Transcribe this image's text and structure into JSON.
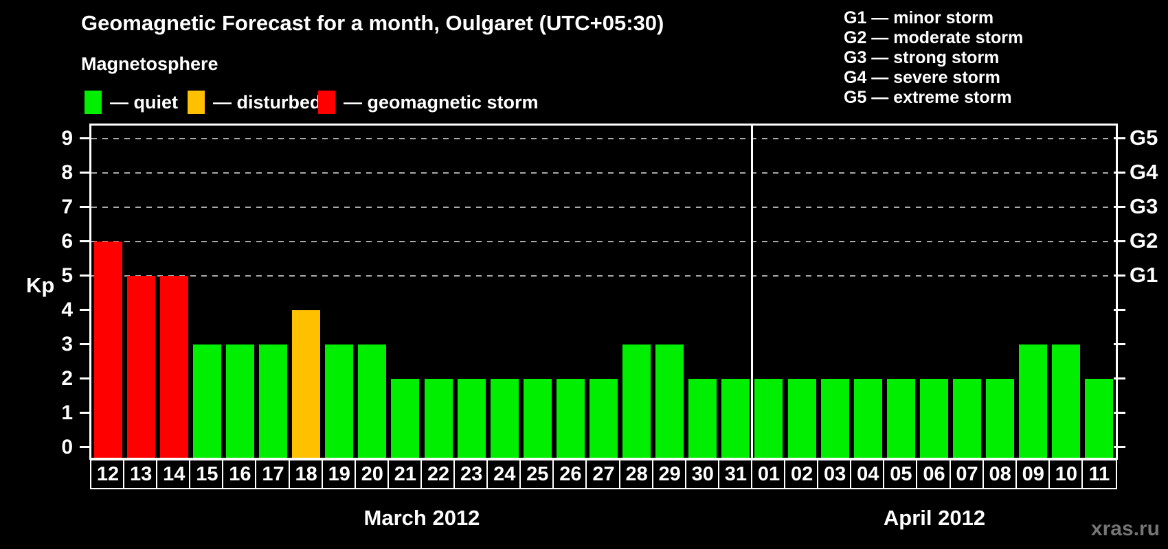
{
  "title": "Geomagnetic Forecast for a month, Oulgaret (UTC+05:30)",
  "watermark": "xras.ru",
  "legend": {
    "title": "Magnetosphere",
    "items": [
      {
        "key": "quiet",
        "label": "— quiet",
        "color": "#00ee00"
      },
      {
        "key": "disturbed",
        "label": "— disturbed",
        "color": "#ffc000"
      },
      {
        "key": "storm",
        "label": "— geomagnetic storm",
        "color": "#ff0000"
      }
    ]
  },
  "g_legend": [
    "G1 — minor storm",
    "G2 — moderate storm",
    "G3 — strong storm",
    "G4 — severe storm",
    "G5 — extreme storm"
  ],
  "chart_data": {
    "type": "bar",
    "title": "Geomagnetic Forecast for a month, Oulgaret (UTC+05:30)",
    "ylabel": "Kp",
    "ylim": [
      0,
      9
    ],
    "y_ticks": [
      0,
      1,
      2,
      3,
      4,
      5,
      6,
      7,
      8,
      9
    ],
    "gridline_levels": [
      5,
      6,
      7,
      8,
      9
    ],
    "right_axis": [
      {
        "level": 5,
        "label": "G1"
      },
      {
        "level": 6,
        "label": "G2"
      },
      {
        "level": 7,
        "label": "G3"
      },
      {
        "level": 8,
        "label": "G4"
      },
      {
        "level": 9,
        "label": "G5"
      }
    ],
    "months": [
      {
        "label": "March 2012",
        "days": 20
      },
      {
        "label": "April 2012",
        "days": 11
      }
    ],
    "categories": [
      "12",
      "13",
      "14",
      "15",
      "16",
      "17",
      "18",
      "19",
      "20",
      "21",
      "22",
      "23",
      "24",
      "25",
      "26",
      "27",
      "28",
      "29",
      "30",
      "31",
      "01",
      "02",
      "03",
      "04",
      "05",
      "06",
      "07",
      "08",
      "09",
      "10",
      "11"
    ],
    "values": [
      6,
      5,
      5,
      3,
      3,
      3,
      4,
      3,
      3,
      2,
      2,
      2,
      2,
      2,
      2,
      2,
      3,
      3,
      2,
      2,
      2,
      2,
      2,
      2,
      2,
      2,
      2,
      2,
      3,
      3,
      2
    ],
    "statuses": [
      "storm",
      "storm",
      "storm",
      "quiet",
      "quiet",
      "quiet",
      "disturbed",
      "quiet",
      "quiet",
      "quiet",
      "quiet",
      "quiet",
      "quiet",
      "quiet",
      "quiet",
      "quiet",
      "quiet",
      "quiet",
      "quiet",
      "quiet",
      "quiet",
      "quiet",
      "quiet",
      "quiet",
      "quiet",
      "quiet",
      "quiet",
      "quiet",
      "quiet",
      "quiet",
      "quiet"
    ]
  }
}
